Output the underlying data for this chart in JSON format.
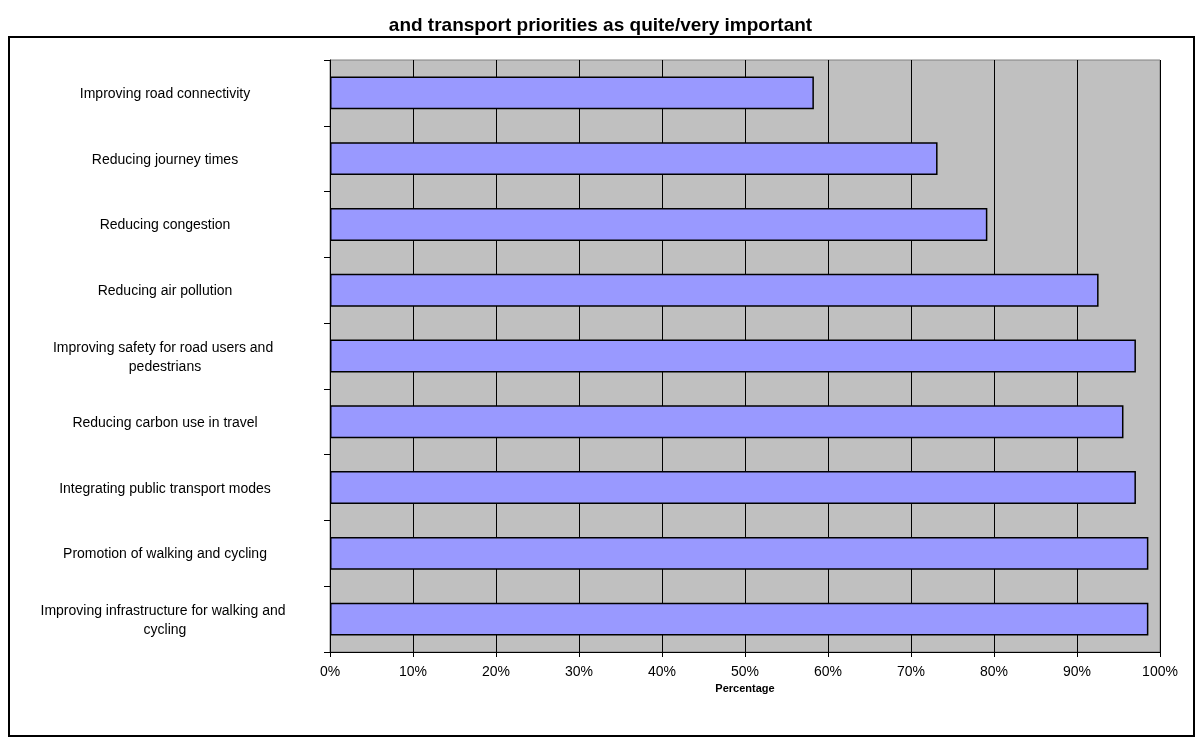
{
  "chart_data": {
    "type": "bar",
    "orientation": "horizontal",
    "title": "and transport priorities as quite/very important",
    "xlabel": "Percentage",
    "categories": [
      "Improving road connectivity",
      "Reducing journey times",
      "Reducing congestion",
      "Reducing air pollution",
      "Improving safety for road users and pedestrians",
      "Reducing carbon use in travel",
      "Integrating public transport modes",
      "Promotion of walking and cycling",
      "Improving infrastructure for walking and cycling"
    ],
    "values": [
      58.3,
      73.2,
      79.2,
      92.6,
      97.1,
      95.6,
      97.1,
      98.6,
      98.6
    ],
    "color": "#9999ff",
    "xlim": [
      0,
      100
    ],
    "xticks": [
      {
        "value": 0,
        "label": "0%"
      },
      {
        "value": 10,
        "label": "10%"
      },
      {
        "value": 20,
        "label": "20%"
      },
      {
        "value": 30,
        "label": "30%"
      },
      {
        "value": 40,
        "label": "40%"
      },
      {
        "value": 50,
        "label": "50%"
      },
      {
        "value": 60,
        "label": "60%"
      },
      {
        "value": 70,
        "label": "70%"
      },
      {
        "value": 80,
        "label": "80%"
      },
      {
        "value": 90,
        "label": "90%"
      },
      {
        "value": 100,
        "label": "100%"
      }
    ],
    "grid": "x"
  }
}
